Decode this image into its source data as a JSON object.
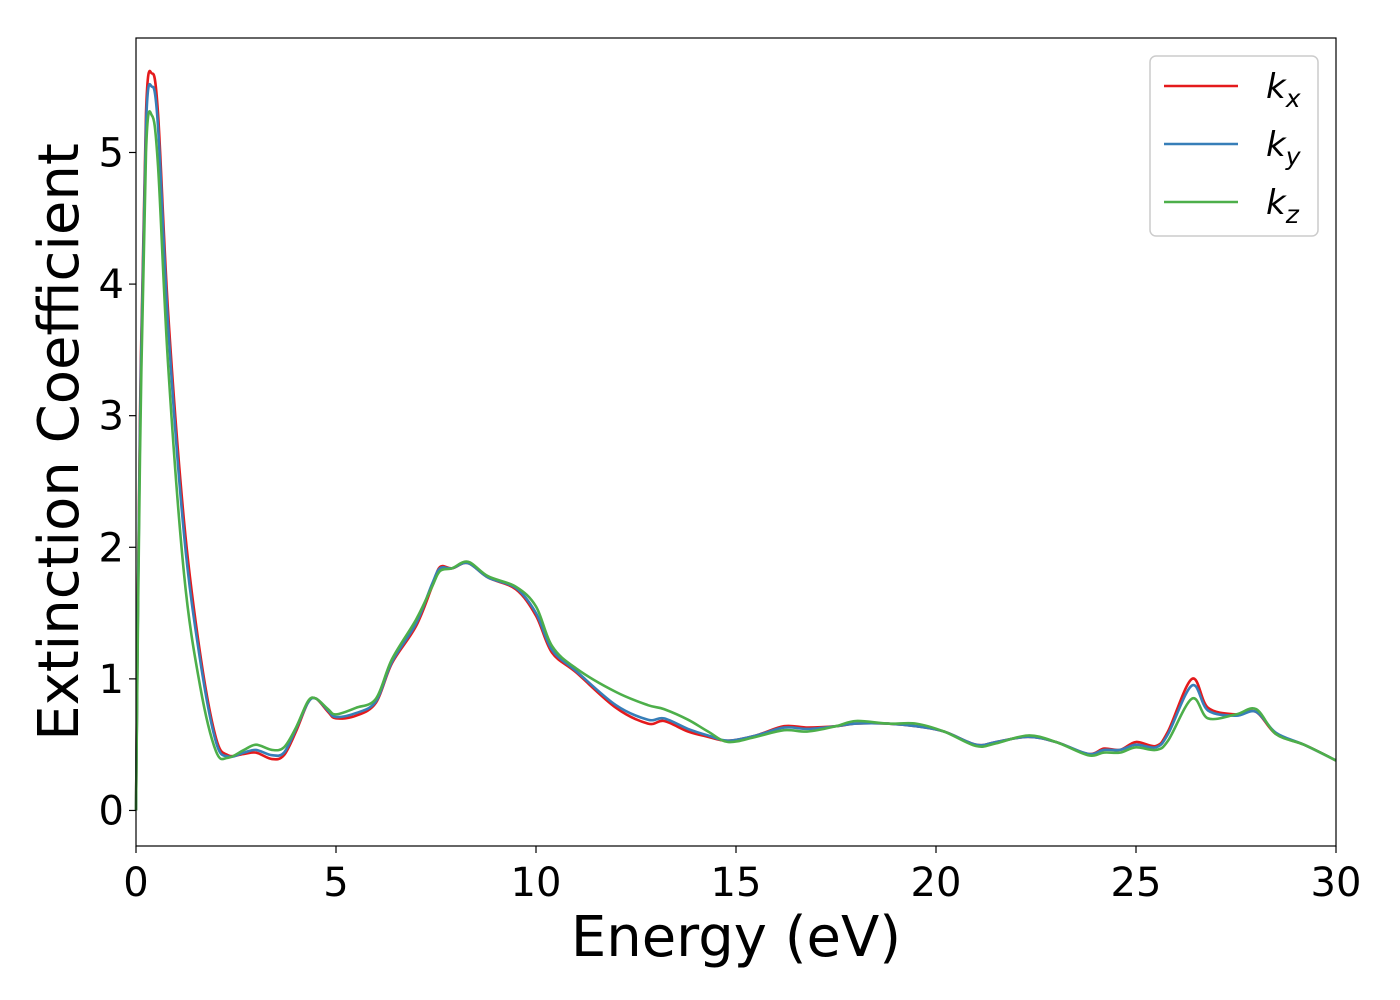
{
  "chart_data": {
    "type": "line",
    "title": "",
    "xlabel": "Energy (eV)",
    "ylabel": "Extinction Coefficient",
    "xlim": [
      0,
      30
    ],
    "ylim": [
      -0.27,
      5.87
    ],
    "xticks": [
      0,
      5,
      10,
      15,
      20,
      25,
      30
    ],
    "xtick_labels": [
      "0",
      "5",
      "10",
      "15",
      "20",
      "25",
      "30"
    ],
    "yticks": [
      0,
      1,
      2,
      3,
      4,
      5
    ],
    "ytick_labels": [
      "0",
      "1",
      "2",
      "3",
      "4",
      "5"
    ],
    "grid": false,
    "legend_position": "top-right",
    "series": [
      {
        "name": "k",
        "subscript": "x",
        "color": "#e41a1c",
        "points": [
          [
            0,
            0.0
          ],
          [
            0.1,
            3.0
          ],
          [
            0.25,
            5.3
          ],
          [
            0.4,
            5.6
          ],
          [
            0.55,
            5.3
          ],
          [
            0.8,
            3.8
          ],
          [
            1.2,
            2.2
          ],
          [
            1.6,
            1.2
          ],
          [
            2.0,
            0.55
          ],
          [
            2.3,
            0.42
          ],
          [
            2.7,
            0.43
          ],
          [
            3.0,
            0.44
          ],
          [
            3.4,
            0.39
          ],
          [
            3.7,
            0.42
          ],
          [
            4.0,
            0.6
          ],
          [
            4.3,
            0.82
          ],
          [
            4.5,
            0.85
          ],
          [
            4.8,
            0.75
          ],
          [
            5.0,
            0.7
          ],
          [
            5.5,
            0.72
          ],
          [
            6.0,
            0.82
          ],
          [
            6.4,
            1.12
          ],
          [
            7.0,
            1.4
          ],
          [
            7.4,
            1.7
          ],
          [
            7.6,
            1.85
          ],
          [
            7.9,
            1.84
          ],
          [
            8.3,
            1.88
          ],
          [
            8.8,
            1.77
          ],
          [
            9.5,
            1.68
          ],
          [
            10.0,
            1.48
          ],
          [
            10.4,
            1.2
          ],
          [
            11.0,
            1.05
          ],
          [
            12.0,
            0.78
          ],
          [
            12.8,
            0.66
          ],
          [
            13.2,
            0.68
          ],
          [
            13.8,
            0.6
          ],
          [
            14.3,
            0.56
          ],
          [
            14.8,
            0.53
          ],
          [
            15.5,
            0.57
          ],
          [
            16.2,
            0.64
          ],
          [
            16.8,
            0.63
          ],
          [
            17.5,
            0.64
          ],
          [
            18.0,
            0.66
          ],
          [
            18.8,
            0.66
          ],
          [
            19.5,
            0.64
          ],
          [
            20.2,
            0.6
          ],
          [
            21.0,
            0.5
          ],
          [
            21.5,
            0.52
          ],
          [
            22.3,
            0.56
          ],
          [
            23.0,
            0.52
          ],
          [
            23.8,
            0.43
          ],
          [
            24.2,
            0.47
          ],
          [
            24.6,
            0.46
          ],
          [
            25.0,
            0.52
          ],
          [
            25.5,
            0.49
          ],
          [
            25.8,
            0.6
          ],
          [
            26.4,
            1.0
          ],
          [
            26.8,
            0.78
          ],
          [
            27.5,
            0.73
          ],
          [
            28.0,
            0.75
          ],
          [
            28.5,
            0.58
          ],
          [
            29.2,
            0.5
          ],
          [
            30.0,
            0.38
          ]
        ]
      },
      {
        "name": "k",
        "subscript": "y",
        "color": "#377eb8",
        "points": [
          [
            0,
            0.0
          ],
          [
            0.1,
            2.9
          ],
          [
            0.25,
            5.2
          ],
          [
            0.4,
            5.5
          ],
          [
            0.55,
            5.2
          ],
          [
            0.8,
            3.7
          ],
          [
            1.2,
            2.1
          ],
          [
            1.6,
            1.15
          ],
          [
            2.0,
            0.52
          ],
          [
            2.3,
            0.41
          ],
          [
            2.7,
            0.44
          ],
          [
            3.0,
            0.46
          ],
          [
            3.4,
            0.42
          ],
          [
            3.7,
            0.44
          ],
          [
            4.0,
            0.62
          ],
          [
            4.3,
            0.82
          ],
          [
            4.5,
            0.85
          ],
          [
            4.8,
            0.76
          ],
          [
            5.0,
            0.71
          ],
          [
            5.5,
            0.74
          ],
          [
            6.0,
            0.83
          ],
          [
            6.4,
            1.13
          ],
          [
            7.0,
            1.42
          ],
          [
            7.4,
            1.72
          ],
          [
            7.6,
            1.84
          ],
          [
            7.9,
            1.84
          ],
          [
            8.3,
            1.88
          ],
          [
            8.8,
            1.77
          ],
          [
            9.5,
            1.69
          ],
          [
            10.0,
            1.5
          ],
          [
            10.4,
            1.22
          ],
          [
            11.0,
            1.06
          ],
          [
            12.0,
            0.8
          ],
          [
            12.8,
            0.69
          ],
          [
            13.2,
            0.7
          ],
          [
            13.8,
            0.62
          ],
          [
            14.3,
            0.57
          ],
          [
            14.8,
            0.53
          ],
          [
            15.5,
            0.57
          ],
          [
            16.2,
            0.63
          ],
          [
            16.8,
            0.62
          ],
          [
            17.5,
            0.64
          ],
          [
            18.0,
            0.66
          ],
          [
            18.8,
            0.66
          ],
          [
            19.5,
            0.64
          ],
          [
            20.2,
            0.6
          ],
          [
            21.0,
            0.5
          ],
          [
            21.5,
            0.52
          ],
          [
            22.3,
            0.56
          ],
          [
            23.0,
            0.52
          ],
          [
            23.8,
            0.43
          ],
          [
            24.2,
            0.46
          ],
          [
            24.6,
            0.46
          ],
          [
            25.0,
            0.5
          ],
          [
            25.5,
            0.48
          ],
          [
            25.8,
            0.58
          ],
          [
            26.4,
            0.95
          ],
          [
            26.8,
            0.76
          ],
          [
            27.5,
            0.72
          ],
          [
            28.0,
            0.75
          ],
          [
            28.5,
            0.59
          ],
          [
            29.2,
            0.5
          ],
          [
            30.0,
            0.38
          ]
        ]
      },
      {
        "name": "k",
        "subscript": "z",
        "color": "#4daf4a",
        "points": [
          [
            0,
            0.0
          ],
          [
            0.1,
            2.7
          ],
          [
            0.25,
            5.0
          ],
          [
            0.4,
            5.28
          ],
          [
            0.55,
            4.9
          ],
          [
            0.8,
            3.4
          ],
          [
            1.2,
            1.8
          ],
          [
            1.6,
            0.95
          ],
          [
            2.0,
            0.45
          ],
          [
            2.3,
            0.4
          ],
          [
            2.7,
            0.46
          ],
          [
            3.0,
            0.5
          ],
          [
            3.4,
            0.46
          ],
          [
            3.7,
            0.48
          ],
          [
            4.0,
            0.63
          ],
          [
            4.3,
            0.83
          ],
          [
            4.5,
            0.85
          ],
          [
            4.8,
            0.77
          ],
          [
            5.0,
            0.73
          ],
          [
            5.5,
            0.78
          ],
          [
            6.0,
            0.85
          ],
          [
            6.4,
            1.15
          ],
          [
            7.0,
            1.45
          ],
          [
            7.4,
            1.7
          ],
          [
            7.6,
            1.82
          ],
          [
            7.9,
            1.84
          ],
          [
            8.3,
            1.89
          ],
          [
            8.8,
            1.78
          ],
          [
            9.5,
            1.7
          ],
          [
            10.0,
            1.55
          ],
          [
            10.4,
            1.25
          ],
          [
            11.0,
            1.08
          ],
          [
            12.0,
            0.9
          ],
          [
            12.8,
            0.8
          ],
          [
            13.2,
            0.77
          ],
          [
            13.8,
            0.69
          ],
          [
            14.3,
            0.6
          ],
          [
            14.8,
            0.52
          ],
          [
            15.5,
            0.56
          ],
          [
            16.2,
            0.61
          ],
          [
            16.8,
            0.6
          ],
          [
            17.5,
            0.64
          ],
          [
            18.0,
            0.68
          ],
          [
            18.8,
            0.66
          ],
          [
            19.5,
            0.66
          ],
          [
            20.2,
            0.6
          ],
          [
            21.0,
            0.49
          ],
          [
            21.5,
            0.51
          ],
          [
            22.3,
            0.57
          ],
          [
            23.0,
            0.52
          ],
          [
            23.8,
            0.42
          ],
          [
            24.2,
            0.44
          ],
          [
            24.6,
            0.44
          ],
          [
            25.0,
            0.48
          ],
          [
            25.5,
            0.46
          ],
          [
            25.8,
            0.53
          ],
          [
            26.4,
            0.85
          ],
          [
            26.8,
            0.7
          ],
          [
            27.5,
            0.73
          ],
          [
            28.0,
            0.77
          ],
          [
            28.5,
            0.58
          ],
          [
            29.2,
            0.5
          ],
          [
            30.0,
            0.38
          ]
        ]
      }
    ]
  }
}
